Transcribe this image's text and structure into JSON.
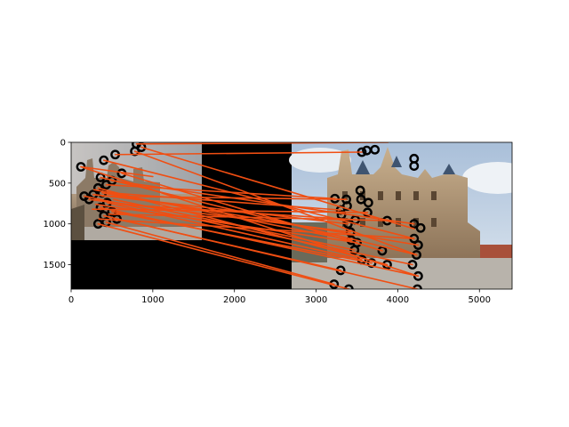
{
  "chart_data": {
    "type": "scatter",
    "title": "",
    "xlabel": "",
    "ylabel": "",
    "xlim": [
      0,
      5400
    ],
    "ylim": [
      1800,
      0
    ],
    "y_inverted": true,
    "grid": false,
    "legend": "none",
    "x_ticks": [
      0,
      1000,
      2000,
      3000,
      4000,
      5000
    ],
    "y_ticks": [
      0,
      500,
      1000,
      1500
    ],
    "x_tick_labels": [
      "0",
      "1000",
      "2000",
      "3000",
      "4000",
      "5000"
    ],
    "y_tick_labels": [
      "0",
      "500",
      "1000",
      "1500"
    ],
    "background_images": [
      {
        "name": "left image",
        "x": [
          0,
          1600
        ],
        "y": [
          0,
          1200
        ]
      },
      {
        "name": "right image",
        "x": [
          2700,
          5400
        ],
        "y": [
          0,
          1800
        ]
      }
    ],
    "match_line_color": "#f04e12",
    "keypoint_color": "#000000",
    "keypoints_left": [
      [
        800,
        20
      ],
      [
        860,
        60
      ],
      [
        780,
        110
      ],
      [
        400,
        220
      ],
      [
        540,
        150
      ],
      [
        120,
        300
      ],
      [
        620,
        380
      ],
      [
        360,
        430
      ],
      [
        500,
        470
      ],
      [
        430,
        520
      ],
      [
        330,
        560
      ],
      [
        380,
        620
      ],
      [
        270,
        640
      ],
      [
        160,
        660
      ],
      [
        220,
        700
      ],
      [
        440,
        740
      ],
      [
        360,
        800
      ],
      [
        500,
        850
      ],
      [
        400,
        900
      ],
      [
        560,
        940
      ],
      [
        430,
        980
      ],
      [
        330,
        1000
      ]
    ],
    "keypoints_right": [
      [
        3560,
        120
      ],
      [
        3620,
        100
      ],
      [
        3720,
        90
      ],
      [
        4200,
        200
      ],
      [
        4200,
        290
      ],
      [
        3540,
        590
      ],
      [
        3230,
        690
      ],
      [
        3370,
        700
      ],
      [
        3550,
        700
      ],
      [
        3640,
        740
      ],
      [
        3380,
        780
      ],
      [
        3300,
        830
      ],
      [
        3630,
        860
      ],
      [
        3310,
        890
      ],
      [
        3480,
        950
      ],
      [
        3870,
        960
      ],
      [
        4200,
        1000
      ],
      [
        3390,
        1000
      ],
      [
        4280,
        1050
      ],
      [
        3420,
        1100
      ],
      [
        4200,
        1180
      ],
      [
        3430,
        1200
      ],
      [
        3500,
        1230
      ],
      [
        4250,
        1260
      ],
      [
        3470,
        1320
      ],
      [
        3810,
        1330
      ],
      [
        4230,
        1380
      ],
      [
        3560,
        1440
      ],
      [
        3680,
        1480
      ],
      [
        3870,
        1500
      ],
      [
        4180,
        1500
      ],
      [
        3300,
        1570
      ],
      [
        4250,
        1640
      ],
      [
        3220,
        1740
      ],
      [
        3400,
        1800
      ],
      [
        4240,
        1800
      ]
    ],
    "matches": [
      [
        [
          800,
          20
        ],
        [
          3880,
          0
        ]
      ],
      [
        [
          860,
          60
        ],
        [
          4200,
          1060
        ]
      ],
      [
        [
          780,
          110
        ],
        [
          4230,
          1380
        ]
      ],
      [
        [
          400,
          220
        ],
        [
          4200,
          1180
        ]
      ],
      [
        [
          120,
          300
        ],
        [
          1000,
          420
        ]
      ],
      [
        [
          120,
          300
        ],
        [
          4250,
          1640
        ]
      ],
      [
        [
          540,
          150
        ],
        [
          3560,
          120
        ]
      ],
      [
        [
          620,
          380
        ],
        [
          3810,
          1330
        ]
      ],
      [
        [
          360,
          430
        ],
        [
          4230,
          1380
        ]
      ],
      [
        [
          500,
          470
        ],
        [
          4200,
          1000
        ]
      ],
      [
        [
          430,
          520
        ],
        [
          3230,
          690
        ]
      ],
      [
        [
          330,
          560
        ],
        [
          3870,
          1500
        ]
      ],
      [
        [
          380,
          620
        ],
        [
          4250,
          1260
        ]
      ],
      [
        [
          270,
          640
        ],
        [
          3390,
          1000
        ]
      ],
      [
        [
          160,
          660
        ],
        [
          4180,
          1500
        ]
      ],
      [
        [
          220,
          700
        ],
        [
          3420,
          1100
        ]
      ],
      [
        [
          440,
          740
        ],
        [
          3560,
          1440
        ]
      ],
      [
        [
          360,
          800
        ],
        [
          4250,
          1640
        ]
      ],
      [
        [
          500,
          850
        ],
        [
          3680,
          1480
        ]
      ],
      [
        [
          400,
          900
        ],
        [
          4240,
          1800
        ]
      ],
      [
        [
          560,
          940
        ],
        [
          3300,
          1570
        ]
      ],
      [
        [
          430,
          980
        ],
        [
          3220,
          1740
        ]
      ],
      [
        [
          330,
          1000
        ],
        [
          3400,
          1800
        ]
      ],
      [
        [
          380,
          660
        ],
        [
          3370,
          700
        ]
      ],
      [
        [
          300,
          760
        ],
        [
          3500,
          1230
        ]
      ],
      [
        [
          480,
          620
        ],
        [
          3300,
          830
        ]
      ],
      [
        [
          520,
          700
        ],
        [
          3470,
          1320
        ]
      ],
      [
        [
          260,
          820
        ],
        [
          3630,
          860
        ]
      ],
      [
        [
          460,
          880
        ],
        [
          3870,
          960
        ]
      ],
      [
        [
          340,
          940
        ],
        [
          4200,
          1180
        ]
      ],
      [
        [
          600,
          760
        ],
        [
          3480,
          950
        ]
      ],
      [
        [
          280,
          580
        ],
        [
          3430,
          1200
        ]
      ]
    ]
  }
}
